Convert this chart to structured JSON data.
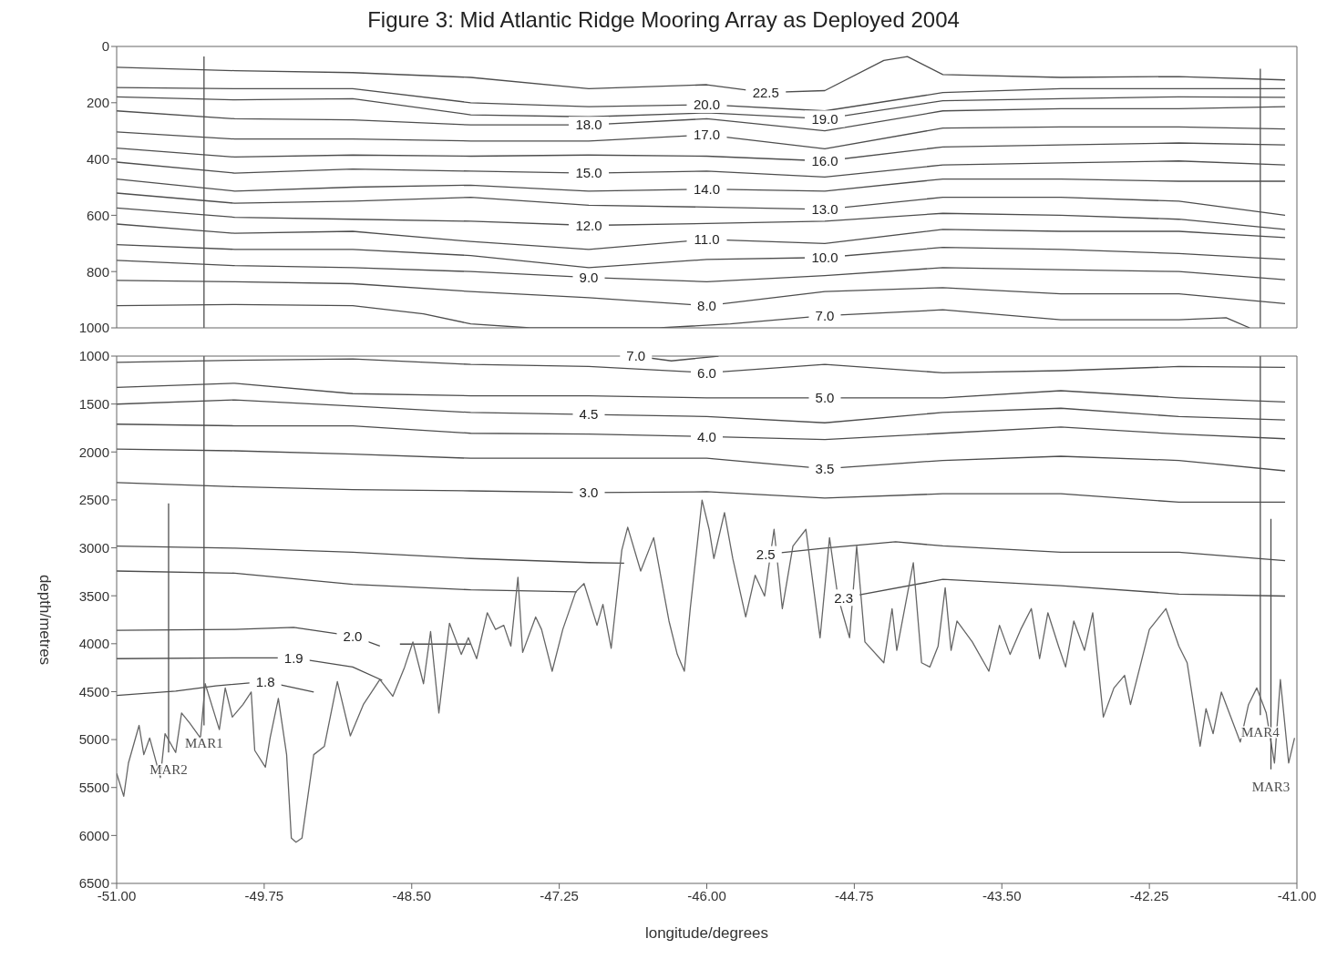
{
  "chart_data": [
    {
      "type": "line",
      "title": "Figure 3: Mid Atlantic Ridge Mooring Array as Deployed 2004",
      "x": [
        -51,
        -50,
        -49,
        -48,
        -47,
        -46,
        -45,
        -44,
        -43,
        -42,
        -41.1
      ],
      "xlim": [
        -51,
        -41
      ],
      "xticks": [
        {
          "value": -51,
          "label": null
        },
        {
          "value": -49.75,
          "label": null
        },
        {
          "value": -48.5,
          "label": null
        },
        {
          "value": -47.25,
          "label": null
        },
        {
          "value": -46,
          "label": null
        },
        {
          "value": -44.75,
          "label": null
        },
        {
          "value": -43.5,
          "label": null
        },
        {
          "value": -42.25,
          "label": null
        },
        {
          "value": -41,
          "label": null
        }
      ],
      "ylim": [
        1000,
        0
      ],
      "yticks": [
        0,
        200,
        400,
        600,
        800,
        1000
      ],
      "tick_labels": "y",
      "marker": "none",
      "line_style": "solid",
      "series": [
        {
          "name": "22.5",
          "color": "#4d4d4d",
          "x": [
            -51,
            -50,
            -49,
            -48,
            -47,
            -46,
            -45.5,
            -45,
            -44.5,
            -44.3,
            -44,
            -43,
            -42,
            -41.1
          ],
          "values": [
            74,
            86,
            93,
            110,
            150,
            136,
            164,
            157,
            50,
            36,
            100,
            110,
            107,
            119
          ]
        },
        {
          "name": "20.0",
          "color": "#4d4d4d",
          "values": [
            146,
            150,
            150,
            200,
            214,
            207,
            229,
            164,
            150,
            150,
            150
          ]
        },
        {
          "name": "19.0",
          "color": "#4d4d4d",
          "values": [
            179,
            190,
            186,
            243,
            250,
            236,
            257,
            193,
            186,
            179,
            181
          ]
        },
        {
          "name": "18.0",
          "color": "#4d4d4d",
          "values": [
            229,
            257,
            261,
            279,
            279,
            257,
            300,
            229,
            221,
            221,
            214
          ]
        },
        {
          "name": "17.0",
          "color": "#4d4d4d",
          "values": [
            304,
            329,
            329,
            336,
            336,
            314,
            364,
            290,
            286,
            286,
            293
          ]
        },
        {
          "name": "16.0",
          "color": "#4d4d4d",
          "values": [
            361,
            393,
            386,
            390,
            386,
            390,
            407,
            357,
            350,
            343,
            350
          ]
        },
        {
          "name": "15.0",
          "color": "#4d4d4d",
          "values": [
            411,
            450,
            436,
            443,
            450,
            443,
            464,
            421,
            414,
            407,
            421
          ]
        },
        {
          "name": "14.0",
          "color": "#4d4d4d",
          "values": [
            471,
            514,
            500,
            493,
            514,
            507,
            514,
            471,
            471,
            479,
            479
          ]
        },
        {
          "name": "13.0",
          "color": "#4d4d4d",
          "values": [
            521,
            557,
            550,
            536,
            564,
            571,
            579,
            536,
            536,
            550,
            600
          ]
        },
        {
          "name": "12.0",
          "color": "#4d4d4d",
          "values": [
            574,
            607,
            614,
            621,
            636,
            629,
            621,
            593,
            600,
            614,
            650
          ]
        },
        {
          "name": "11.0",
          "color": "#4d4d4d",
          "values": [
            631,
            664,
            657,
            693,
            721,
            686,
            700,
            650,
            657,
            657,
            679
          ]
        },
        {
          "name": "10.0",
          "color": "#4d4d4d",
          "values": [
            704,
            721,
            721,
            743,
            786,
            757,
            750,
            714,
            721,
            736,
            757
          ]
        },
        {
          "name": "9.0",
          "color": "#4d4d4d",
          "values": [
            760,
            779,
            786,
            800,
            821,
            836,
            814,
            786,
            793,
            800,
            829
          ]
        },
        {
          "name": "8.0",
          "color": "#4d4d4d",
          "values": [
            831,
            836,
            843,
            871,
            893,
            921,
            871,
            857,
            879,
            879,
            914
          ]
        },
        {
          "name": "7.0",
          "color": "#4d4d4d",
          "x": [
            -51,
            -50,
            -49,
            -48.4,
            -48,
            -47.5,
            -46.4,
            -45.8,
            -45,
            -44,
            -43,
            -42,
            -41.6,
            -41.4
          ],
          "values": [
            921,
            917,
            921,
            950,
            986,
            1000,
            1000,
            986,
            957,
            936,
            971,
            971,
            964,
            1000
          ]
        },
        {
          "color": "#4d4d4d",
          "x": [
            -50.26,
            -50.26
          ],
          "values": [
            36,
            1000
          ]
        },
        {
          "color": "#4d4d4d",
          "x": [
            -41.31,
            -41.31
          ],
          "values": [
            79,
            1000
          ]
        }
      ]
    },
    {
      "type": "line",
      "xlabel": "longitude/degrees",
      "ylabel": "depth/metres",
      "x": [
        -51,
        -50,
        -49,
        -48,
        -47,
        -46,
        -45,
        -44,
        -43,
        -42,
        -41.1
      ],
      "xlim": [
        -51,
        -41
      ],
      "xticks": [
        {
          "value": -51,
          "label": "-51.00"
        },
        {
          "value": -49.75,
          "label": "-49.75"
        },
        {
          "value": -48.5,
          "label": "-48.50"
        },
        {
          "value": -47.25,
          "label": "-47.25"
        },
        {
          "value": -46,
          "label": "-46.00"
        },
        {
          "value": -44.75,
          "label": "-44.75"
        },
        {
          "value": -43.5,
          "label": "-43.50"
        },
        {
          "value": -42.25,
          "label": "-42.25"
        },
        {
          "value": -41,
          "label": "-41.00"
        }
      ],
      "ylim": [
        6500,
        1000
      ],
      "yticks": [
        1000,
        1500,
        2000,
        2500,
        3000,
        3500,
        4000,
        4500,
        5000,
        5500,
        6000,
        6500
      ],
      "marker": "none",
      "line_style": "solid",
      "series": [
        {
          "name": "7.0",
          "color": "#4d4d4d",
          "x": [
            -46.6,
            -46.3,
            -45.9
          ],
          "values": [
            1000,
            1050,
            1000
          ]
        },
        {
          "name": "6.0",
          "color": "#4d4d4d",
          "values": [
            1065,
            1044,
            1030,
            1087,
            1109,
            1174,
            1087,
            1174,
            1152,
            1109,
            1117
          ]
        },
        {
          "name": "5.0",
          "color": "#4d4d4d",
          "values": [
            1326,
            1283,
            1392,
            1414,
            1414,
            1435,
            1435,
            1435,
            1361,
            1435,
            1479
          ]
        },
        {
          "name": "4.5",
          "color": "#4d4d4d",
          "values": [
            1501,
            1457,
            1522,
            1588,
            1609,
            1631,
            1696,
            1588,
            1544,
            1631,
            1666
          ]
        },
        {
          "name": "4.0",
          "color": "#4d4d4d",
          "values": [
            1710,
            1727,
            1727,
            1805,
            1814,
            1840,
            1871,
            1805,
            1740,
            1814,
            1862
          ]
        },
        {
          "name": "3.5",
          "color": "#4d4d4d",
          "values": [
            1971,
            1988,
            2023,
            2066,
            2066,
            2066,
            2175,
            2088,
            2045,
            2088,
            2197
          ]
        },
        {
          "name": "3.0",
          "color": "#4d4d4d",
          "values": [
            2319,
            2362,
            2393,
            2406,
            2423,
            2415,
            2480,
            2436,
            2436,
            2524,
            2524
          ]
        },
        {
          "name": "2.5",
          "color": "#4d4d4d",
          "x": [
            -51,
            -50,
            -49,
            -48,
            -47,
            -46.7,
            -46,
            -45.5,
            -45,
            -44.4,
            -44,
            -43,
            -42,
            -41.1
          ],
          "values": [
            2981,
            3003,
            3046,
            3111,
            3154,
            3160,
            null,
            3067,
            3003,
            2937,
            2980,
            3046,
            3046,
            3133
          ]
        },
        {
          "name": "2.3",
          "color": "#4d4d4d",
          "x": [
            -51,
            -50,
            -49,
            -48,
            -47.1,
            -46,
            -44.84,
            -44,
            -43,
            -42,
            -41.1
          ],
          "values": [
            3242,
            3264,
            3381,
            3438,
            3460,
            null,
            3520,
            3329,
            3395,
            3482,
            3503
          ]
        },
        {
          "name": "2.0",
          "color": "#4d4d4d",
          "x": [
            -51,
            -50,
            -49.5,
            -49,
            -48.77,
            -48.7,
            -48.6,
            -48.0
          ],
          "values": [
            3860,
            3851,
            3830,
            3920,
            4025,
            null,
            4004,
            4004
          ]
        },
        {
          "name": "1.9",
          "color": "#4d4d4d",
          "x": [
            -51,
            -50,
            -49.5,
            -49,
            -48.75
          ],
          "values": [
            4156,
            4147,
            4147,
            4243,
            4382
          ]
        },
        {
          "name": "1.8",
          "color": "#4d4d4d",
          "x": [
            -51,
            -50.5,
            -50.16,
            -49.74,
            -49.33
          ],
          "values": [
            4539,
            4495,
            4439,
            4395,
            4504
          ]
        },
        {
          "name": "MAR1",
          "color": "#4d4d4d",
          "x": [
            -50.26,
            -50.26
          ],
          "values": [
            1000,
            4852
          ]
        },
        {
          "name": "MAR2",
          "color": "#4d4d4d",
          "x": [
            -50.56,
            -50.56
          ],
          "values": [
            2537,
            5135
          ]
        },
        {
          "name": "MAR4",
          "color": "#4d4d4d",
          "x": [
            -41.31,
            -41.31
          ],
          "values": [
            1000,
            4744
          ]
        },
        {
          "color": "#666666",
          "x": [
            -51,
            -50.94,
            -50.9,
            -50.81,
            -50.77,
            -50.72,
            -50.63,
            -50.59,
            -50.5,
            -50.45,
            -50.38,
            -50.29,
            -50.25,
            -50.13,
            -50.08,
            -50.02,
            -49.93,
            -49.86,
            -49.83,
            -49.74,
            -49.7,
            -49.63,
            -49.56,
            -49.52,
            -49.48,
            -49.43,
            -49.33,
            -49.24,
            -49.13,
            -49.02,
            -48.91,
            -48.77,
            -48.66,
            -48.56,
            -48.49,
            -48.4,
            -48.34,
            -48.27,
            -48.18,
            -48.08,
            -48.02,
            -47.95,
            -47.86,
            -47.79,
            -47.72,
            -47.66,
            -47.6,
            -47.56,
            -47.45,
            -47.4,
            -47.31,
            -47.22,
            -47.11,
            -47.04,
            -46.93,
            -46.88,
            -46.81,
            -46.72,
            -46.67,
            -46.56,
            -46.45,
            -46.32,
            -46.25,
            -46.19,
            -46.14,
            -46.04,
            -45.98,
            -45.94,
            -45.85,
            -45.78,
            -45.67,
            -45.59,
            -45.51,
            -45.43,
            -45.36,
            -45.27,
            -45.16,
            -45.04,
            -44.96,
            -44.89,
            -44.79,
            -44.73,
            -44.66,
            -44.5,
            -44.43,
            -44.39,
            -44.25,
            -44.18,
            -44.11,
            -44.04,
            -43.98,
            -43.93,
            -43.88,
            -43.75,
            -43.61,
            -43.52,
            -43.43,
            -43.34,
            -43.25,
            -43.18,
            -43.11,
            -43.02,
            -42.96,
            -42.89,
            -42.8,
            -42.73,
            -42.64,
            -42.55,
            -42.46,
            -42.41,
            -42.25,
            -42.11,
            -42,
            -41.93,
            -41.82,
            -41.77,
            -41.71,
            -41.64,
            -41.48,
            -41.41,
            -41.34,
            -41.26,
            -41.19,
            -41.14,
            -41.07,
            -41.02
          ],
          "values": [
            5353,
            5592,
            5244,
            4852,
            5157,
            4983,
            5397,
            4939,
            5135,
            4722,
            4830,
            4983,
            4417,
            4896,
            4461,
            4765,
            4635,
            4504,
            5113,
            5288,
            4983,
            4570,
            5157,
            6028,
            6071,
            6028,
            5157,
            5070,
            4395,
            4961,
            4635,
            4374,
            4548,
            4243,
            3982,
            4417,
            3873,
            4722,
            3786,
            4112,
            3938,
            4156,
            3677,
            3851,
            3808,
            4025,
            3307,
            4091,
            3721,
            3851,
            4287,
            3851,
            3459,
            3372,
            3808,
            3590,
            4047,
            3024,
            2785,
            3242,
            2894,
            3764,
            4112,
            4287,
            3634,
            2502,
            2807,
            3111,
            2633,
            3111,
            3721,
            3286,
            3503,
            2807,
            3634,
            2981,
            2807,
            3938,
            2894,
            3503,
            3938,
            2981,
            3982,
            4199,
            3634,
            4069,
            3155,
            4199,
            4243,
            4025,
            3416,
            4069,
            3764,
            3982,
            4287,
            3808,
            4112,
            3851,
            3634,
            4156,
            3677,
            4025,
            4243,
            3764,
            4069,
            3677,
            4765,
            4461,
            4330,
            4635,
            3851,
            3634,
            4025,
            4199,
            5070,
            4678,
            4939,
            4504,
            5026,
            4635,
            4461,
            4722,
            5244,
            4374,
            5244,
            4983
          ]
        },
        {
          "name": "MAR3",
          "color": "#4d4d4d",
          "x": [
            -41.22,
            -41.22
          ],
          "values": [
            2698,
            5310
          ]
        }
      ]
    }
  ]
}
